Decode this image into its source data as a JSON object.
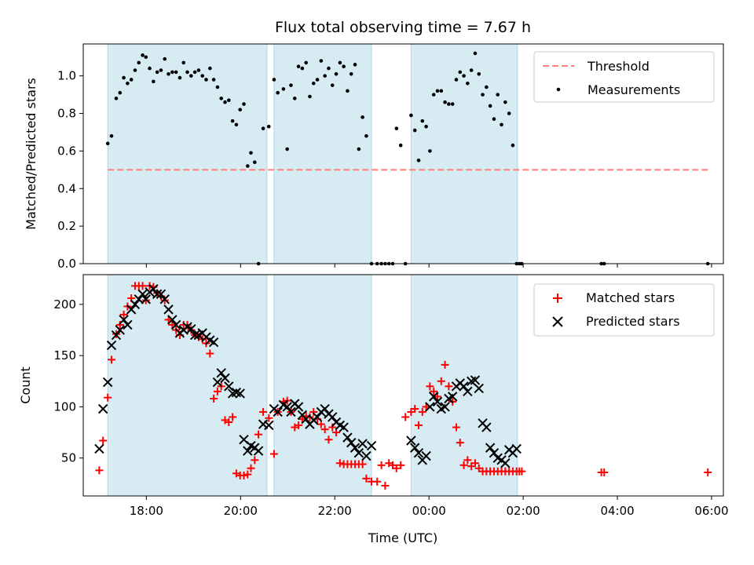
{
  "title": "Flux total observing time = 7.67 h",
  "colors": {
    "threshold": "#ff7f7f",
    "measurement": "#000000",
    "matched": "#ff0000",
    "predicted": "#000000",
    "span": "#add8e6"
  },
  "chart_data": [
    {
      "type": "scatter",
      "panel": "top",
      "xlabel": "",
      "ylabel": "Matched/Predicted stars",
      "ylim": [
        0,
        1.17
      ],
      "yticks": [
        0.0,
        0.2,
        0.4,
        0.6,
        0.8,
        1.0
      ],
      "ytick_labels": [
        "0.0",
        "0.2",
        "0.4",
        "0.6",
        "0.8",
        "1.0"
      ],
      "x_unit": "hours since 00:00 UTC of first night (values above 24 are the next day)",
      "xlim": [
        16.66,
        30.25
      ],
      "spans": [
        [
          17.18,
          20.56
        ],
        [
          20.71,
          22.78
        ],
        [
          23.62,
          25.88
        ]
      ],
      "legend_position": "upper right",
      "legend": [
        "Threshold",
        "Measurements"
      ],
      "threshold": {
        "name": "Threshold",
        "y": 0.5,
        "x_range": [
          17.18,
          29.92
        ]
      },
      "series": [
        {
          "name": "Measurements",
          "marker": "dot",
          "x": [
            17.18,
            17.26,
            17.36,
            17.44,
            17.52,
            17.6,
            17.68,
            17.76,
            17.84,
            17.92,
            17.99,
            18.07,
            18.15,
            18.23,
            18.31,
            18.39,
            18.47,
            18.55,
            18.63,
            18.71,
            18.79,
            18.87,
            18.95,
            19.03,
            19.11,
            19.19,
            19.27,
            19.35,
            19.43,
            19.51,
            19.59,
            19.67,
            19.75,
            19.83,
            19.91,
            19.99,
            20.07,
            20.15,
            20.22,
            20.3,
            20.38,
            20.48,
            20.6,
            20.71,
            20.79,
            20.91,
            20.99,
            21.07,
            21.15,
            21.23,
            21.31,
            21.39,
            21.47,
            21.55,
            21.63,
            21.71,
            21.79,
            21.87,
            21.95,
            22.03,
            22.11,
            22.19,
            22.27,
            22.35,
            22.43,
            22.51,
            22.59,
            22.67,
            22.78,
            22.9,
            22.99,
            23.07,
            23.15,
            23.23,
            23.31,
            23.4,
            23.5,
            23.62,
            23.7,
            23.78,
            23.86,
            23.94,
            24.02,
            24.1,
            24.18,
            24.26,
            24.34,
            24.42,
            24.5,
            24.58,
            24.66,
            24.74,
            24.82,
            24.9,
            24.98,
            25.06,
            25.14,
            25.22,
            25.3,
            25.38,
            25.46,
            25.54,
            25.62,
            25.7,
            25.78,
            25.86,
            25.92,
            25.97,
            27.66,
            27.72,
            29.92
          ],
          "y": [
            0.64,
            0.68,
            0.88,
            0.91,
            0.99,
            0.96,
            0.98,
            1.03,
            1.07,
            1.11,
            1.1,
            1.04,
            0.97,
            1.02,
            1.03,
            1.09,
            1.01,
            1.02,
            1.02,
            0.99,
            1.07,
            1.02,
            1.0,
            1.02,
            1.03,
            1.0,
            0.98,
            1.04,
            0.98,
            0.94,
            0.88,
            0.86,
            0.87,
            0.76,
            0.74,
            0.82,
            0.85,
            0.52,
            0.59,
            0.54,
            0.0,
            0.72,
            0.73,
            0.98,
            0.91,
            0.93,
            0.61,
            0.95,
            0.88,
            1.05,
            1.04,
            1.07,
            0.89,
            0.96,
            0.98,
            1.08,
            1.0,
            1.04,
            0.95,
            1.01,
            1.07,
            1.05,
            0.92,
            1.01,
            1.06,
            0.61,
            0.78,
            0.68,
            0.0,
            0.0,
            0.0,
            0.0,
            0.0,
            0.0,
            0.72,
            0.63,
            0.0,
            0.79,
            0.71,
            0.55,
            0.76,
            0.73,
            0.6,
            0.9,
            0.92,
            0.92,
            0.86,
            0.85,
            0.85,
            0.98,
            1.02,
            1.0,
            0.96,
            1.03,
            1.12,
            1.01,
            0.9,
            0.94,
            0.84,
            0.77,
            0.9,
            0.74,
            0.86,
            0.8,
            0.63,
            0.0,
            0.0,
            0.0,
            0.0,
            0.0,
            0.0
          ]
        }
      ]
    },
    {
      "type": "scatter",
      "panel": "bottom",
      "xlabel": "Time (UTC)",
      "ylabel": "Count",
      "ylim": [
        13,
        229
      ],
      "yticks": [
        50,
        100,
        150,
        200
      ],
      "ytick_labels": [
        "50",
        "100",
        "150",
        "200"
      ],
      "x_unit": "hours since 00:00 UTC of first night (values above 24 are the next day)",
      "xlim": [
        16.66,
        30.25
      ],
      "xticks": [
        18,
        20,
        22,
        24,
        26,
        28,
        30
      ],
      "xtick_labels": [
        "18:00",
        "20:00",
        "22:00",
        "00:00",
        "02:00",
        "04:00",
        "06:00"
      ],
      "spans": [
        [
          17.18,
          20.56
        ],
        [
          20.71,
          22.78
        ],
        [
          23.62,
          25.88
        ]
      ],
      "legend_position": "upper right",
      "legend": [
        "Matched stars",
        "Predicted stars"
      ],
      "series": [
        {
          "name": "Matched stars",
          "marker": "plus",
          "x": [
            17.0,
            17.08,
            17.18,
            17.26,
            17.36,
            17.44,
            17.52,
            17.6,
            17.68,
            17.76,
            17.84,
            17.92,
            17.99,
            18.07,
            18.15,
            18.23,
            18.31,
            18.39,
            18.47,
            18.55,
            18.63,
            18.71,
            18.79,
            18.87,
            18.95,
            19.03,
            19.11,
            19.19,
            19.27,
            19.35,
            19.43,
            19.51,
            19.59,
            19.67,
            19.75,
            19.83,
            19.91,
            19.99,
            20.07,
            20.15,
            20.22,
            20.3,
            20.38,
            20.48,
            20.6,
            20.71,
            20.79,
            20.91,
            20.99,
            21.07,
            21.15,
            21.23,
            21.31,
            21.39,
            21.47,
            21.55,
            21.63,
            21.71,
            21.79,
            21.87,
            21.95,
            22.03,
            22.11,
            22.19,
            22.27,
            22.35,
            22.43,
            22.51,
            22.59,
            22.67,
            22.78,
            22.9,
            22.99,
            23.07,
            23.15,
            23.23,
            23.31,
            23.4,
            23.5,
            23.62,
            23.7,
            23.78,
            23.86,
            23.94,
            24.02,
            24.1,
            24.18,
            24.26,
            24.34,
            24.42,
            24.5,
            24.58,
            24.66,
            24.74,
            24.82,
            24.9,
            24.98,
            25.06,
            25.14,
            25.22,
            25.3,
            25.38,
            25.46,
            25.54,
            25.62,
            25.7,
            25.78,
            25.86,
            25.92,
            25.97,
            27.66,
            27.72,
            29.92
          ],
          "y": [
            38,
            67,
            109,
            146,
            171,
            180,
            190,
            198,
            206,
            218,
            218,
            218,
            204,
            218,
            217,
            211,
            208,
            204,
            185,
            180,
            175,
            170,
            180,
            180,
            175,
            170,
            168,
            166,
            162,
            152,
            108,
            115,
            120,
            87,
            85,
            90,
            35,
            33,
            33,
            34,
            40,
            48,
            73,
            95,
            89,
            54,
            95,
            105,
            106,
            95,
            80,
            82,
            88,
            91,
            90,
            95,
            88,
            83,
            78,
            68,
            80,
            75,
            45,
            44,
            44,
            44,
            44,
            44,
            44,
            30,
            27,
            27,
            43,
            23,
            45,
            43,
            40,
            43,
            90,
            95,
            98,
            82,
            95,
            100,
            120,
            115,
            110,
            125,
            141,
            120,
            105,
            80,
            65,
            43,
            48,
            42,
            45,
            40,
            37,
            37,
            37,
            37,
            37,
            37,
            37,
            37,
            37,
            37,
            37,
            37,
            36,
            36,
            36
          ]
        },
        {
          "name": "Predicted stars",
          "marker": "x",
          "x": [
            17.0,
            17.08,
            17.18,
            17.26,
            17.36,
            17.44,
            17.52,
            17.6,
            17.68,
            17.76,
            17.84,
            17.92,
            17.99,
            18.07,
            18.15,
            18.23,
            18.31,
            18.39,
            18.47,
            18.55,
            18.63,
            18.71,
            18.79,
            18.87,
            18.95,
            19.03,
            19.11,
            19.19,
            19.27,
            19.35,
            19.43,
            19.51,
            19.59,
            19.67,
            19.75,
            19.83,
            19.91,
            19.99,
            20.07,
            20.15,
            20.22,
            20.3,
            20.38,
            20.48,
            20.6,
            20.71,
            20.79,
            20.91,
            20.99,
            21.07,
            21.15,
            21.23,
            21.31,
            21.39,
            21.47,
            21.55,
            21.63,
            21.71,
            21.79,
            21.87,
            21.95,
            22.03,
            22.11,
            22.19,
            22.27,
            22.35,
            22.43,
            22.51,
            22.59,
            22.67,
            22.78,
            23.62,
            23.7,
            23.78,
            23.86,
            23.94,
            24.02,
            24.1,
            24.18,
            24.26,
            24.34,
            24.42,
            24.5,
            24.58,
            24.66,
            24.74,
            24.82,
            24.9,
            24.98,
            25.06,
            25.14,
            25.22,
            25.3,
            25.38,
            25.46,
            25.54,
            25.62,
            25.7,
            25.78,
            25.86
          ],
          "y": [
            59,
            98,
            124,
            160,
            170,
            175,
            185,
            180,
            195,
            200,
            205,
            210,
            205,
            212,
            215,
            210,
            210,
            205,
            195,
            185,
            180,
            172,
            175,
            178,
            176,
            170,
            170,
            172,
            168,
            165,
            163,
            124,
            133,
            128,
            120,
            113,
            114,
            113,
            68,
            57,
            62,
            60,
            57,
            83,
            82,
            98,
            95,
            102,
            100,
            95,
            103,
            100,
            92,
            88,
            83,
            87,
            90,
            95,
            98,
            93,
            90,
            85,
            82,
            80,
            70,
            65,
            60,
            55,
            64,
            52,
            62,
            67,
            60,
            55,
            48,
            52,
            100,
            110,
            105,
            98,
            100,
            108,
            110,
            120,
            123,
            120,
            115,
            125,
            126,
            118,
            84,
            80,
            60,
            55,
            50,
            48,
            45,
            58,
            55,
            59
          ]
        }
      ]
    }
  ]
}
